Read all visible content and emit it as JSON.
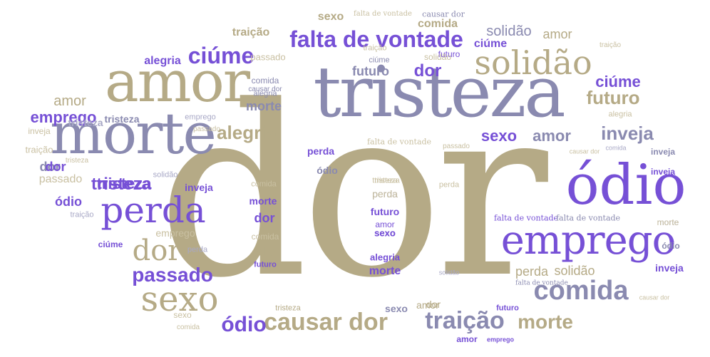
{
  "colors": {
    "tan": "#b5aa86",
    "slate": "#8a8ab0",
    "violet": "#7650d6",
    "light_tan": "#c9c0a2",
    "light_slate": "#a8a8c6"
  },
  "words": [
    {
      "text": "dor",
      "color": "tan"
    },
    {
      "text": "tristeza",
      "color": "slate"
    },
    {
      "text": "amor",
      "color": "tan"
    },
    {
      "text": "morte",
      "color": "slate"
    },
    {
      "text": "ódio",
      "color": "violet"
    },
    {
      "text": "emprego",
      "color": "violet"
    },
    {
      "text": "solidão",
      "color": "tan"
    },
    {
      "text": "falta de vontade",
      "color": "violet"
    },
    {
      "text": "ciúme",
      "color": "violet"
    },
    {
      "text": "perda",
      "color": "violet"
    },
    {
      "text": "sexo",
      "color": "tan"
    },
    {
      "text": "comida",
      "color": "slate"
    },
    {
      "text": "passado",
      "color": "violet"
    },
    {
      "text": "dor",
      "color": "tan"
    },
    {
      "text": "causar dor",
      "color": "tan"
    },
    {
      "text": "traição",
      "color": "slate"
    },
    {
      "text": "ódio",
      "color": "violet"
    },
    {
      "text": "morte",
      "color": "tan"
    },
    {
      "text": "alegria",
      "color": "tan"
    },
    {
      "text": "futuro",
      "color": "tan"
    },
    {
      "text": "inveja",
      "color": "slate"
    },
    {
      "text": "sexo",
      "color": "violet"
    },
    {
      "text": "amor",
      "color": "slate"
    },
    {
      "text": "tristeza",
      "color": "violet"
    },
    {
      "text": "dor",
      "color": "violet"
    },
    {
      "text": "ciúme",
      "color": "violet"
    },
    {
      "text": "emprego",
      "color": "violet"
    },
    {
      "text": "amor",
      "color": "tan"
    },
    {
      "text": "dor",
      "color": "slate"
    },
    {
      "text": "futuro",
      "color": "slate"
    },
    {
      "text": "ódio",
      "color": "violet"
    },
    {
      "text": "ciúme",
      "color": "violet"
    },
    {
      "text": "traição",
      "color": "tan"
    },
    {
      "text": "alegria",
      "color": "violet"
    },
    {
      "text": "sexo",
      "color": "tan"
    },
    {
      "text": "comida",
      "color": "tan"
    },
    {
      "text": "causar dor",
      "color": "slate"
    },
    {
      "text": "amor",
      "color": "tan"
    },
    {
      "text": "solidão",
      "color": "slate"
    },
    {
      "text": "solidão",
      "color": "tan"
    },
    {
      "text": "passado",
      "color": "light_tan"
    },
    {
      "text": "tristeza",
      "color": "light_slate"
    },
    {
      "text": "falta de vontade",
      "color": "light_tan"
    },
    {
      "text": "causar dor",
      "color": "slate"
    },
    {
      "text": "comida",
      "color": "slate"
    },
    {
      "text": "traição",
      "color": "light_tan"
    },
    {
      "text": "ciúme",
      "color": "slate"
    },
    {
      "text": "alegria",
      "color": "slate"
    },
    {
      "text": "morte",
      "color": "slate"
    },
    {
      "text": "futuro",
      "color": "violet"
    },
    {
      "text": "emprego",
      "color": "light_slate"
    },
    {
      "text": "tristeza",
      "color": "slate"
    },
    {
      "text": "alegria",
      "color": "light_tan"
    },
    {
      "text": "inveja",
      "color": "light_tan"
    },
    {
      "text": "traição",
      "color": "light_tan"
    },
    {
      "text": "dor",
      "color": "violet"
    },
    {
      "text": "passado",
      "color": "light_tan"
    },
    {
      "text": "solidão",
      "color": "light_slate"
    },
    {
      "text": "tristeza",
      "color": "violet"
    },
    {
      "text": "inveja",
      "color": "violet"
    },
    {
      "text": "perda",
      "color": "violet"
    },
    {
      "text": "traição",
      "color": "light_slate"
    },
    {
      "text": "emprego",
      "color": "light_tan"
    },
    {
      "text": "perda",
      "color": "slate"
    },
    {
      "text": "ódio",
      "color": "slate"
    },
    {
      "text": "ciúme",
      "color": "violet"
    },
    {
      "text": "perda",
      "color": "light_slate"
    },
    {
      "text": "passado",
      "color": "light_tan"
    },
    {
      "text": "falta de vontade",
      "color": "light_tan"
    },
    {
      "text": "passado",
      "color": "light_tan"
    },
    {
      "text": "sexo",
      "color": "violet"
    },
    {
      "text": "amor",
      "color": "violet"
    },
    {
      "text": "inveja",
      "color": "slate"
    },
    {
      "text": "causar dor",
      "color": "light_tan"
    },
    {
      "text": "comida",
      "color": "light_slate"
    },
    {
      "text": "inveja",
      "color": "violet"
    },
    {
      "text": "comida",
      "color": "light_tan"
    },
    {
      "text": "tristeza",
      "color": "light_tan"
    },
    {
      "text": "perda",
      "color": "light_tan"
    },
    {
      "text": "morte",
      "color": "violet"
    },
    {
      "text": "dor",
      "color": "violet"
    },
    {
      "text": "ódio",
      "color": "tan"
    },
    {
      "text": "futuro",
      "color": "violet"
    },
    {
      "text": "comida",
      "color": "light_tan"
    },
    {
      "text": "morte",
      "color": "light_slate"
    },
    {
      "text": "sexo",
      "color": "violet"
    },
    {
      "text": "amor",
      "color": "tan"
    },
    {
      "text": "tristeza",
      "color": "light_tan"
    },
    {
      "text": "perda",
      "color": "light_tan"
    },
    {
      "text": "futuro",
      "color": "violet"
    },
    {
      "text": "alegria",
      "color": "violet"
    },
    {
      "text": "morte",
      "color": "violet"
    },
    {
      "text": "falta de vontade",
      "color": "violet"
    },
    {
      "text": "falta de vontade",
      "color": "slate"
    },
    {
      "text": "morte",
      "color": "light_tan"
    },
    {
      "text": "perda",
      "color": "tan"
    },
    {
      "text": "solidão",
      "color": "tan"
    },
    {
      "text": "ódio",
      "color": "slate"
    },
    {
      "text": "inveja",
      "color": "violet"
    },
    {
      "text": "solidão",
      "color": "light_slate"
    },
    {
      "text": "falta de vontade",
      "color": "slate"
    },
    {
      "text": "causar dor",
      "color": "light_tan"
    },
    {
      "text": "tristeza",
      "color": "tan"
    },
    {
      "text": "sexo",
      "color": "slate"
    },
    {
      "text": "dor",
      "color": "tan"
    },
    {
      "text": "futuro",
      "color": "violet"
    },
    {
      "text": "amor",
      "color": "violet"
    },
    {
      "text": "emprego",
      "color": "violet"
    },
    {
      "text": "sexo",
      "color": "light_tan"
    },
    {
      "text": "comida",
      "color": "light_tan"
    },
    {
      "text": "traição",
      "color": "light_tan"
    },
    {
      "text": "tristeza",
      "color": "light_tan"
    }
  ]
}
